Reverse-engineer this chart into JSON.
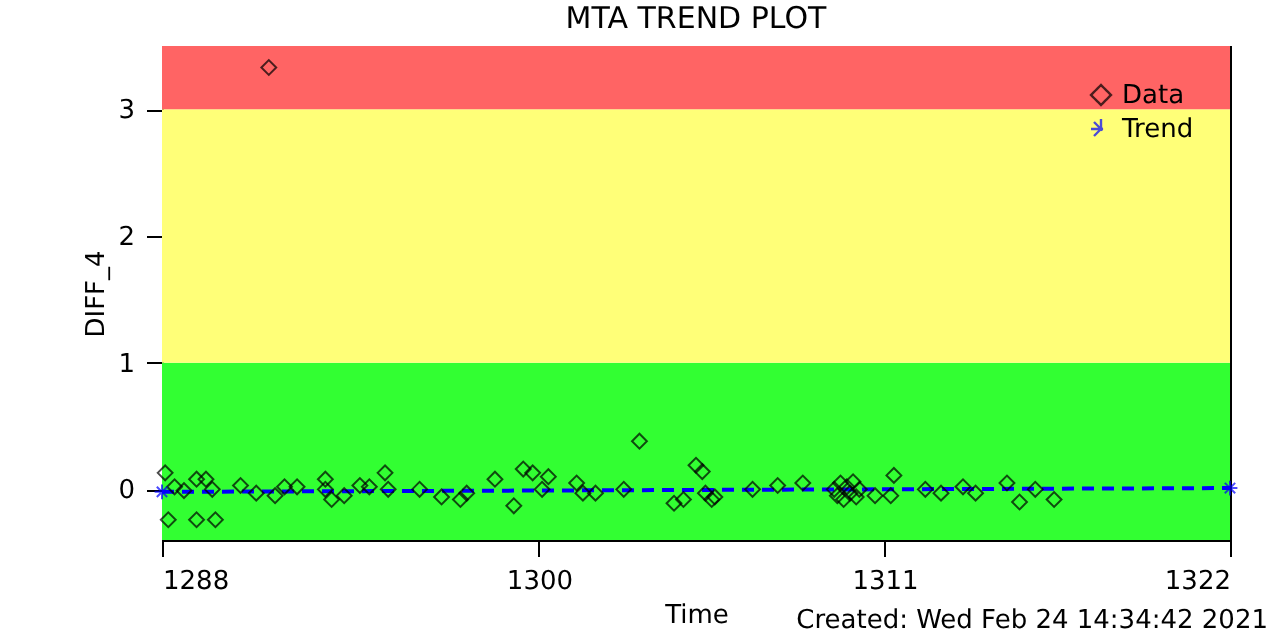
{
  "chart_data": {
    "type": "scatter",
    "title": "MTA TREND PLOT",
    "xlabel": "Time",
    "ylabel": "DIFF_4",
    "annotations": [
      "Created: Wed Feb 24 14:34:42 2021"
    ],
    "xlim": [
      1288,
      1322
    ],
    "xticks": [
      1288,
      1300,
      1311,
      1322
    ],
    "ylim": [
      -0.4,
      3.5
    ],
    "yticks": [
      0,
      1,
      2,
      3
    ],
    "bands": [
      {
        "axis": "y",
        "from": -0.4,
        "to": 1,
        "color": "#32ff32"
      },
      {
        "axis": "y",
        "from": 1,
        "to": 3,
        "color": "#ffff78"
      },
      {
        "axis": "y",
        "from": 3,
        "to": 3.5,
        "color": "#ff6464"
      }
    ],
    "legend": "top right",
    "series": [
      {
        "name": "Data",
        "marker": "diamond",
        "color": "#000000",
        "x": [
          1288.1,
          1288.2,
          1288.4,
          1288.7,
          1289.1,
          1289.1,
          1289.4,
          1289.7,
          1289.6,
          1290.5,
          1291.0,
          1291.4,
          1291.6,
          1291.9,
          1292.3,
          1293.2,
          1293.2,
          1293.4,
          1293.8,
          1294.3,
          1294.6,
          1295.1,
          1295.2,
          1296.2,
          1296.9,
          1297.5,
          1297.7,
          1298.6,
          1299.2,
          1299.5,
          1299.8,
          1300.1,
          1300.3,
          1301.2,
          1301.4,
          1301.8,
          1302.7,
          1303.2,
          1304.3,
          1304.6,
          1305.0,
          1305.2,
          1305.3,
          1305.5,
          1305.6,
          1306.8,
          1307.6,
          1308.4,
          1309.4,
          1309.5,
          1309.6,
          1309.7,
          1309.8,
          1309.9,
          1310.0,
          1310.1,
          1310.2,
          1310.7,
          1311.2,
          1311.3,
          1312.3,
          1312.8,
          1313.5,
          1313.9,
          1314.9,
          1315.3,
          1315.8,
          1316.4
        ],
        "values": [
          0.13,
          -0.24,
          0.02,
          -0.01,
          0.08,
          -0.24,
          0.08,
          -0.24,
          0,
          0.03,
          -0.03,
          3.33,
          -0.05,
          0.02,
          0.02,
          0.08,
          0,
          -0.08,
          -0.05,
          0.03,
          0.02,
          0.13,
          0,
          0,
          -0.06,
          -0.08,
          -0.03,
          0.08,
          -0.13,
          0.16,
          0.13,
          0,
          0.1,
          0.05,
          -0.03,
          -0.03,
          0,
          0.38,
          -0.11,
          -0.08,
          0.19,
          0.14,
          -0.03,
          -0.08,
          -0.06,
          0,
          0.03,
          0.05,
          0,
          -0.05,
          0.05,
          -0.08,
          0.02,
          -0.03,
          0.06,
          -0.06,
          0,
          -0.05,
          -0.05,
          0.11,
          0,
          -0.03,
          0.02,
          -0.03,
          0.05,
          -0.1,
          0,
          -0.08
        ]
      },
      {
        "name": "Trend",
        "type": "line",
        "marker": "cross",
        "line_style": "dashed",
        "color": "#0000ff",
        "x": [
          1288,
          1322
        ],
        "values": [
          -0.02,
          0.01
        ]
      }
    ]
  }
}
